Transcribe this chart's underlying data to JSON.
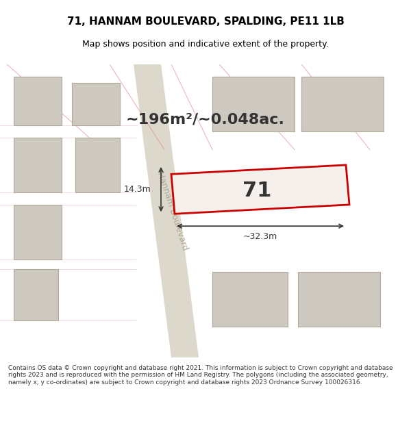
{
  "title": "71, HANNAM BOULEVARD, SPALDING, PE11 1LB",
  "subtitle": "Map shows position and indicative extent of the property.",
  "area_text": "~196m²/~0.048ac.",
  "plot_number": "71",
  "dim_width": "~32.3m",
  "dim_height": "14.3m",
  "footer": "Contains OS data © Crown copyright and database right 2021. This information is subject to Crown copyright and database rights 2023 and is reproduced with the permission of HM Land Registry. The polygons (including the associated geometry, namely x, y co-ordinates) are subject to Crown copyright and database rights 2023 Ordnance Survey 100026316.",
  "bg_color": "#f0ede8",
  "plot_fill": "#f5f0eb",
  "plot_edge": "#cc0000",
  "road_color": "#e8e0d0",
  "building_fill": "#d8d0c8",
  "building_edge": "#b0a898",
  "street_label": "Hannam Boulevard",
  "street_line_color": "#c8c0b0"
}
